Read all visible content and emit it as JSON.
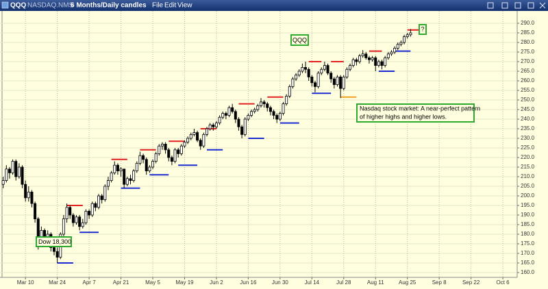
{
  "chart_data": {
    "type": "candlestick",
    "toolbar": {
      "symbol": "QQQ",
      "exchange": "NASDAQ.NMS",
      "period": "6 Months/Daily candles",
      "menus": [
        "File",
        "Edit",
        "View"
      ]
    },
    "open": [
      206,
      208,
      214,
      212,
      218,
      210,
      215,
      206,
      199,
      202,
      196,
      188,
      178,
      182,
      176,
      180,
      173,
      171,
      168,
      180,
      188,
      194,
      190,
      186,
      189,
      184,
      186,
      192,
      190,
      196,
      194,
      200,
      198,
      205,
      208,
      212,
      216,
      213,
      214,
      206,
      209,
      208,
      213,
      217,
      221,
      219,
      213,
      215,
      218,
      222,
      226,
      227,
      224,
      220,
      218,
      224,
      222,
      226,
      228,
      230,
      232,
      233,
      229,
      226,
      232,
      235,
      237,
      236,
      238,
      241,
      243,
      242,
      246,
      244,
      240,
      236,
      232,
      240,
      242,
      244,
      245,
      247,
      249,
      248,
      246,
      244,
      242,
      240,
      243,
      248,
      252,
      257,
      261,
      263,
      265,
      267,
      266,
      262,
      259,
      257,
      264,
      266,
      268,
      264,
      261,
      258,
      262,
      256,
      262,
      266,
      268,
      271,
      270,
      273,
      274,
      272,
      271,
      272,
      268,
      270,
      268,
      272,
      274,
      275,
      277,
      279,
      280,
      283,
      284
    ],
    "high": [
      210,
      216,
      215,
      219,
      219,
      217,
      216,
      208,
      205,
      203,
      197,
      189,
      184,
      183,
      182,
      181,
      176,
      173,
      181,
      190,
      196,
      195,
      191,
      190,
      190,
      188,
      193,
      193,
      197,
      197,
      201,
      201,
      206,
      210,
      213,
      218,
      217,
      215,
      214,
      210,
      211,
      214,
      218,
      223,
      222,
      220,
      216,
      219,
      223,
      227,
      228,
      228,
      225,
      221,
      225,
      225,
      227,
      229,
      231,
      233,
      235,
      234,
      230,
      233,
      236,
      238,
      238,
      239,
      242,
      244,
      244,
      247,
      248,
      245,
      241,
      237,
      241,
      243,
      245,
      246,
      248,
      251,
      250,
      249,
      247,
      245,
      243,
      244,
      249,
      253,
      258,
      262,
      264,
      266,
      269,
      270,
      267,
      263,
      260,
      265,
      267,
      270,
      269,
      265,
      262,
      263,
      263,
      263,
      267,
      269,
      272,
      272,
      274,
      276,
      275,
      273,
      273,
      273,
      271,
      271,
      273,
      275,
      276,
      278,
      280,
      281,
      284,
      285,
      287
    ],
    "low": [
      204,
      207,
      209,
      211,
      208,
      209,
      204,
      197,
      197,
      194,
      186,
      172,
      176,
      174,
      174,
      171,
      169,
      165,
      167,
      179,
      186,
      188,
      184,
      185,
      182,
      183,
      185,
      188,
      189,
      192,
      193,
      196,
      197,
      203,
      207,
      211,
      211,
      210,
      204,
      205,
      206,
      207,
      212,
      216,
      217,
      211,
      212,
      214,
      217,
      221,
      224,
      222,
      218,
      216,
      217,
      220,
      221,
      225,
      227,
      229,
      231,
      228,
      224,
      225,
      231,
      234,
      234,
      235,
      237,
      240,
      240,
      241,
      243,
      238,
      234,
      230,
      231,
      239,
      241,
      243,
      244,
      246,
      246,
      244,
      242,
      240,
      238,
      239,
      242,
      247,
      251,
      256,
      260,
      262,
      264,
      264,
      260,
      257,
      254,
      256,
      263,
      265,
      263,
      259,
      256,
      257,
      251,
      255,
      261,
      265,
      267,
      268,
      269,
      272,
      271,
      269,
      270,
      265,
      267,
      266,
      267,
      271,
      273,
      274,
      276,
      278,
      279,
      282,
      283
    ],
    "close": [
      208,
      214,
      212,
      218,
      210,
      215,
      206,
      199,
      202,
      196,
      188,
      178,
      182,
      176,
      180,
      173,
      171,
      168,
      180,
      188,
      194,
      190,
      186,
      189,
      184,
      186,
      192,
      190,
      196,
      194,
      200,
      198,
      205,
      208,
      212,
      216,
      213,
      214,
      206,
      209,
      208,
      213,
      217,
      221,
      219,
      213,
      215,
      218,
      222,
      226,
      227,
      224,
      220,
      218,
      224,
      222,
      226,
      228,
      230,
      232,
      233,
      229,
      226,
      232,
      235,
      237,
      236,
      238,
      241,
      243,
      242,
      246,
      244,
      240,
      236,
      232,
      240,
      242,
      244,
      245,
      247,
      249,
      248,
      246,
      244,
      242,
      240,
      243,
      248,
      252,
      257,
      261,
      263,
      265,
      267,
      266,
      262,
      259,
      257,
      264,
      266,
      268,
      264,
      261,
      258,
      262,
      256,
      262,
      266,
      268,
      271,
      270,
      273,
      274,
      272,
      271,
      272,
      268,
      270,
      268,
      272,
      274,
      275,
      277,
      279,
      280,
      283,
      284,
      285
    ],
    "xlim": [
      -1,
      161.5
    ],
    "xticks": [
      {
        "value": 7,
        "label": "Mar 10"
      },
      {
        "value": 17,
        "label": "Mar 24"
      },
      {
        "value": 27,
        "label": "Apr 7"
      },
      {
        "value": 37,
        "label": "Apr 21"
      },
      {
        "value": 47,
        "label": "May 5"
      },
      {
        "value": 57,
        "label": "May 19"
      },
      {
        "value": 67,
        "label": "Jun 2"
      },
      {
        "value": 77,
        "label": "Jun 16"
      },
      {
        "value": 87,
        "label": "Jun 30"
      },
      {
        "value": 97,
        "label": "Jul 14"
      },
      {
        "value": 107,
        "label": "Jul 28"
      },
      {
        "value": 117,
        "label": "Aug 11"
      },
      {
        "value": 127,
        "label": "Aug 25"
      },
      {
        "value": 137,
        "label": "Sep 8"
      },
      {
        "value": 147,
        "label": "Sep 22"
      },
      {
        "value": 157,
        "label": "Oct 6"
      }
    ],
    "ylim": [
      157.5,
      295
    ],
    "yticks": [
      {
        "value": 160,
        "label": "160.0"
      },
      {
        "value": 165,
        "label": "165.0"
      },
      {
        "value": 170,
        "label": "170.0"
      },
      {
        "value": 175,
        "label": "175.0"
      },
      {
        "value": 180,
        "label": "180.0"
      },
      {
        "value": 185,
        "label": "185.0"
      },
      {
        "value": 190,
        "label": "190.0"
      },
      {
        "value": 195,
        "label": "195.0"
      },
      {
        "value": 200,
        "label": "200.0"
      },
      {
        "value": 205,
        "label": "205.0"
      },
      {
        "value": 210,
        "label": "210.0"
      },
      {
        "value": 215,
        "label": "215.0"
      },
      {
        "value": 220,
        "label": "220.0"
      },
      {
        "value": 225,
        "label": "225.0"
      },
      {
        "value": 230,
        "label": "230.0"
      },
      {
        "value": 235,
        "label": "235.0"
      },
      {
        "value": 240,
        "label": "240.0"
      },
      {
        "value": 245,
        "label": "245.0"
      },
      {
        "value": 250,
        "label": "250.0"
      },
      {
        "value": 255,
        "label": "255.0"
      },
      {
        "value": 260,
        "label": "260.0"
      },
      {
        "value": 265,
        "label": "265.0"
      },
      {
        "value": 270,
        "label": "270.0"
      },
      {
        "value": 275,
        "label": "275.0"
      },
      {
        "value": 280,
        "label": "280.0"
      },
      {
        "value": 285,
        "label": "285.0"
      },
      {
        "value": 290,
        "label": "290.0"
      }
    ],
    "grid": true,
    "levels": [
      {
        "value": 195,
        "x": [
          20,
          25
        ],
        "color": "#e02020"
      },
      {
        "value": 165,
        "x": [
          17,
          22
        ],
        "color": "#1a2ad0"
      },
      {
        "value": 181,
        "x": [
          24,
          30
        ],
        "color": "#1a2ad0"
      },
      {
        "value": 219,
        "x": [
          34,
          39
        ],
        "color": "#e02020"
      },
      {
        "value": 204,
        "x": [
          37,
          43
        ],
        "color": "#1a2ad0"
      },
      {
        "value": 224,
        "x": [
          43,
          48
        ],
        "color": "#e02020"
      },
      {
        "value": 211,
        "x": [
          46,
          52
        ],
        "color": "#1a2ad0"
      },
      {
        "value": 228.5,
        "x": [
          52,
          57
        ],
        "color": "#e02020"
      },
      {
        "value": 216,
        "x": [
          55,
          61
        ],
        "color": "#1a2ad0"
      },
      {
        "value": 235,
        "x": [
          62,
          67
        ],
        "color": "#e02020"
      },
      {
        "value": 224,
        "x": [
          64,
          69
        ],
        "color": "#1a2ad0"
      },
      {
        "value": 248,
        "x": [
          74,
          79
        ],
        "color": "#e02020"
      },
      {
        "value": 230,
        "x": [
          77,
          82
        ],
        "color": "#1a2ad0"
      },
      {
        "value": 251.5,
        "x": [
          83,
          88
        ],
        "color": "#e02020"
      },
      {
        "value": 238,
        "x": [
          87,
          93
        ],
        "color": "#1a2ad0"
      },
      {
        "value": 270,
        "x": [
          96,
          100
        ],
        "color": "#e02020"
      },
      {
        "value": 253.5,
        "x": [
          97,
          103
        ],
        "color": "#1a2ad0"
      },
      {
        "value": 270,
        "x": [
          103,
          107
        ],
        "color": "#e02020"
      },
      {
        "value": 251.5,
        "x": [
          106,
          111
        ],
        "color": "#f0a020"
      },
      {
        "value": 275.5,
        "x": [
          115,
          119
        ],
        "color": "#e02020"
      },
      {
        "value": 265,
        "x": [
          118,
          123
        ],
        "color": "#1a2ad0"
      },
      {
        "value": 275.5,
        "x": [
          123,
          128
        ],
        "color": "#1a2ad0"
      },
      {
        "value": 286.5,
        "x": [
          127,
          131
        ],
        "color": "#e02020"
      }
    ],
    "annotations": {
      "symbol_box": "QQQ",
      "question": "?",
      "note": [
        "Nasdaq stock market: A near-perfect pattern",
        "of higher highs and higher lows."
      ],
      "dow": "Dow 18,300"
    }
  }
}
